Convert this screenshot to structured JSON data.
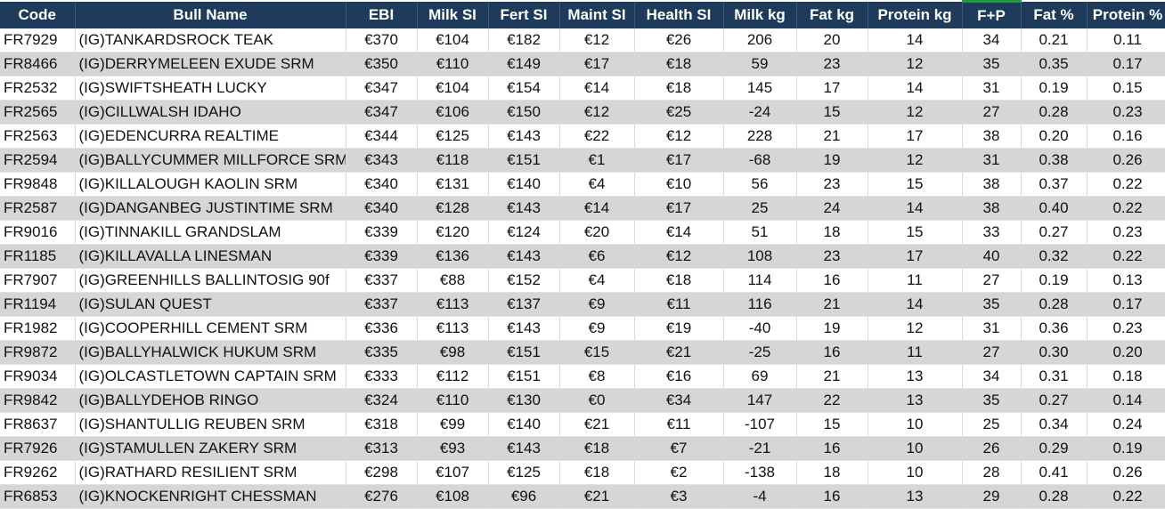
{
  "table": {
    "headers": [
      "Code",
      "Bull Name",
      "EBI",
      "Milk SI",
      "Fert SI",
      "Maint SI",
      "Health SI",
      "Milk kg",
      "Fat kg",
      "Protein kg",
      "F+P",
      "Fat %",
      "Protein %"
    ],
    "rows": [
      [
        "FR7929",
        "(IG)TANKARDSROCK TEAK",
        "€370",
        "€104",
        "€182",
        "€12",
        "€26",
        "206",
        "20",
        "14",
        "34",
        "0.21",
        "0.11"
      ],
      [
        "FR8466",
        "(IG)DERRYMELEEN EXUDE SRM",
        "€350",
        "€110",
        "€149",
        "€17",
        "€18",
        "59",
        "23",
        "12",
        "35",
        "0.35",
        "0.17"
      ],
      [
        "FR2532",
        "(IG)SWIFTSHEATH LUCKY",
        "€347",
        "€104",
        "€154",
        "€14",
        "€18",
        "145",
        "17",
        "14",
        "31",
        "0.19",
        "0.15"
      ],
      [
        "FR2565",
        "(IG)CILLWALSH IDAHO",
        "€347",
        "€106",
        "€150",
        "€12",
        "€25",
        "-24",
        "15",
        "12",
        "27",
        "0.28",
        "0.23"
      ],
      [
        "FR2563",
        "(IG)EDENCURRA REALTIME",
        "€344",
        "€125",
        "€143",
        "€22",
        "€12",
        "228",
        "21",
        "17",
        "38",
        "0.20",
        "0.16"
      ],
      [
        "FR2594",
        "(IG)BALLYCUMMER MILLFORCE SRM",
        "€343",
        "€118",
        "€151",
        "€1",
        "€17",
        "-68",
        "19",
        "12",
        "31",
        "0.38",
        "0.26"
      ],
      [
        "FR9848",
        "(IG)KILLALOUGH KAOLIN SRM",
        "€340",
        "€131",
        "€140",
        "€4",
        "€10",
        "56",
        "23",
        "15",
        "38",
        "0.37",
        "0.22"
      ],
      [
        "FR2587",
        "(IG)DANGANBEG JUSTINTIME SRM",
        "€340",
        "€128",
        "€143",
        "€14",
        "€17",
        "25",
        "24",
        "14",
        "38",
        "0.40",
        "0.22"
      ],
      [
        "FR9016",
        "(IG)TINNAKILL GRANDSLAM",
        "€339",
        "€120",
        "€124",
        "€20",
        "€14",
        "51",
        "18",
        "15",
        "33",
        "0.27",
        "0.23"
      ],
      [
        "FR1185",
        "(IG)KILLAVALLA LINESMAN",
        "€339",
        "€136",
        "€143",
        "€6",
        "€12",
        "108",
        "23",
        "17",
        "40",
        "0.32",
        "0.22"
      ],
      [
        "FR7907",
        "(IG)GREENHILLS BALLINTOSIG 90f",
        "€337",
        "€88",
        "€152",
        "€4",
        "€18",
        "114",
        "16",
        "11",
        "27",
        "0.19",
        "0.13"
      ],
      [
        "FR1194",
        "(IG)SULAN QUEST",
        "€337",
        "€113",
        "€137",
        "€9",
        "€11",
        "116",
        "21",
        "14",
        "35",
        "0.28",
        "0.17"
      ],
      [
        "FR1982",
        "(IG)COOPERHILL CEMENT SRM",
        "€336",
        "€113",
        "€143",
        "€9",
        "€19",
        "-40",
        "19",
        "12",
        "31",
        "0.36",
        "0.23"
      ],
      [
        "FR9872",
        "(IG)BALLYHALWICK HUKUM SRM",
        "€335",
        "€98",
        "€151",
        "€15",
        "€21",
        "-25",
        "16",
        "11",
        "27",
        "0.30",
        "0.20"
      ],
      [
        "FR9034",
        "(IG)OLCASTLETOWN CAPTAIN SRM",
        "€333",
        "€112",
        "€151",
        "€8",
        "€16",
        "69",
        "21",
        "13",
        "34",
        "0.31",
        "0.18"
      ],
      [
        "FR9842",
        "(IG)BALLYDEHOB RINGO",
        "€324",
        "€110",
        "€130",
        "€0",
        "€34",
        "147",
        "22",
        "13",
        "35",
        "0.27",
        "0.14"
      ],
      [
        "FR8637",
        "(IG)SHANTULLIG REUBEN SRM",
        "€318",
        "€99",
        "€140",
        "€21",
        "€11",
        "-107",
        "15",
        "10",
        "25",
        "0.34",
        "0.24"
      ],
      [
        "FR7926",
        "(IG)STAMULLEN ZAKERY SRM",
        "€313",
        "€93",
        "€143",
        "€18",
        "€7",
        "-21",
        "16",
        "10",
        "26",
        "0.29",
        "0.19"
      ],
      [
        "FR9262",
        "(IG)RATHARD RESILIENT SRM",
        "€298",
        "€107",
        "€125",
        "€18",
        "€2",
        "-138",
        "18",
        "10",
        "28",
        "0.41",
        "0.26"
      ],
      [
        "FR6853",
        "(IG)KNOCKENRIGHT CHESSMAN",
        "€276",
        "€108",
        "€96",
        "€21",
        "€3",
        "-4",
        "16",
        "13",
        "29",
        "0.28",
        "0.22"
      ]
    ]
  },
  "colors": {
    "header_bg": "#1f3b5c",
    "header_text": "#ffffff",
    "accent_green": "#1f9d3a",
    "row_even": "#d6d6d6",
    "row_odd": "#ffffff"
  }
}
